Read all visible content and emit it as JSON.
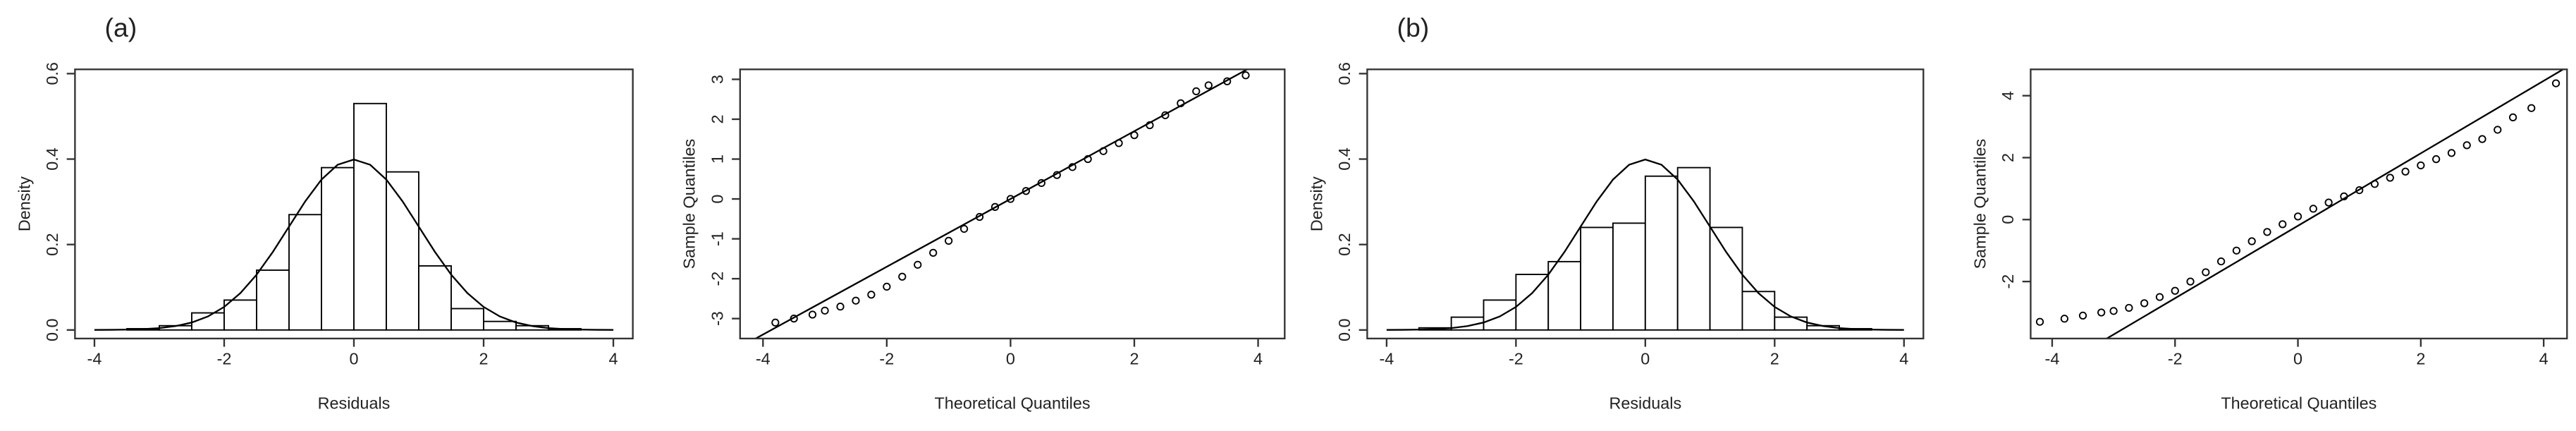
{
  "chart_data": [
    {
      "type": "histogram",
      "panel_label": "(a)",
      "xlabel": "Residuals",
      "ylabel": "Density",
      "bins": [
        -3.5,
        -3,
        -2.5,
        -2,
        -1.5,
        -1,
        -0.5,
        0,
        0.5,
        1,
        1.5,
        2,
        2.5,
        3,
        3.5
      ],
      "values": [
        0.003,
        0.01,
        0.04,
        0.07,
        0.14,
        0.27,
        0.38,
        0.53,
        0.37,
        0.15,
        0.05,
        0.02,
        0.01,
        0.003
      ],
      "density": {
        "x": [
          -4,
          -3.75,
          -3.5,
          -3.25,
          -3,
          -2.75,
          -2.5,
          -2.25,
          -2,
          -1.75,
          -1.5,
          -1.25,
          -1,
          -0.75,
          -0.5,
          -0.25,
          0,
          0.25,
          0.5,
          0.75,
          1,
          1.25,
          1.5,
          1.75,
          2,
          2.25,
          2.5,
          2.75,
          3,
          3.25,
          3.5,
          3.75,
          4
        ],
        "values": [
          0.0001,
          0.0004,
          0.0009,
          0.002,
          0.0044,
          0.0091,
          0.0175,
          0.0317,
          0.054,
          0.0863,
          0.1295,
          0.1826,
          0.242,
          0.3011,
          0.352,
          0.3867,
          0.399,
          0.3867,
          0.352,
          0.3011,
          0.242,
          0.1826,
          0.1295,
          0.0863,
          0.054,
          0.0317,
          0.0175,
          0.0091,
          0.0044,
          0.002,
          0.0009,
          0.0004,
          0.0001
        ]
      },
      "color": "#000000",
      "bar_fill": "#ffffff",
      "xlim": [
        -4.3,
        4.3
      ],
      "ylim": [
        -0.02,
        0.61
      ],
      "xticks": [
        -4,
        -2,
        0,
        2,
        4
      ],
      "yticks": [
        {
          "value": 0,
          "label": "0.0"
        },
        0.2,
        0.4,
        0.6
      ]
    },
    {
      "type": "qq",
      "xlabel": "Theoretical Quantiles",
      "ylabel": "Sample Quantiles",
      "x": [
        -3.8,
        -3.5,
        -3.2,
        -3,
        -2.75,
        -2.5,
        -2.25,
        -2,
        -1.75,
        -1.5,
        -1.25,
        -1,
        -0.75,
        -0.5,
        -0.25,
        0,
        0.25,
        0.5,
        0.75,
        1,
        1.25,
        1.5,
        1.75,
        2,
        2.25,
        2.5,
        2.75,
        3,
        3.2,
        3.5,
        3.8
      ],
      "values": [
        -3.1,
        -3,
        -2.9,
        -2.8,
        -2.7,
        -2.55,
        -2.4,
        -2.2,
        -1.95,
        -1.65,
        -1.35,
        -1.05,
        -0.75,
        -0.45,
        -0.2,
        0,
        0.2,
        0.4,
        0.6,
        0.8,
        1,
        1.2,
        1.4,
        1.6,
        1.85,
        2.1,
        2.4,
        2.7,
        2.85,
        2.95,
        3.1
      ],
      "qqline": {
        "intercept": 0,
        "slope": 0.85
      },
      "color": "#000000",
      "xlim": [
        -4.37,
        4.43
      ],
      "ylim": [
        -3.5,
        3.25
      ],
      "xticks": [
        -4,
        -2,
        0,
        2,
        4
      ],
      "yticks": [
        -3,
        -2,
        -1,
        0,
        1,
        2,
        3
      ]
    },
    {
      "type": "histogram",
      "panel_label": "(b)",
      "xlabel": "Residuals",
      "ylabel": "Density",
      "bins": [
        -3.5,
        -3,
        -2.5,
        -2,
        -1.5,
        -1,
        -0.5,
        0,
        0.5,
        1,
        1.5,
        2,
        2.5,
        3,
        3.5
      ],
      "values": [
        0.005,
        0.03,
        0.07,
        0.13,
        0.16,
        0.24,
        0.25,
        0.36,
        0.38,
        0.24,
        0.09,
        0.03,
        0.01,
        0.003
      ],
      "density": {
        "x": [
          -4,
          -3.75,
          -3.5,
          -3.25,
          -3,
          -2.75,
          -2.5,
          -2.25,
          -2,
          -1.75,
          -1.5,
          -1.25,
          -1,
          -0.75,
          -0.5,
          -0.25,
          0,
          0.25,
          0.5,
          0.75,
          1,
          1.25,
          1.5,
          1.75,
          2,
          2.25,
          2.5,
          2.75,
          3,
          3.25,
          3.5,
          3.75,
          4
        ],
        "values": [
          0.0001,
          0.0004,
          0.0009,
          0.002,
          0.0044,
          0.0091,
          0.0175,
          0.0317,
          0.054,
          0.0863,
          0.1295,
          0.1826,
          0.242,
          0.3011,
          0.352,
          0.3867,
          0.399,
          0.3867,
          0.352,
          0.3011,
          0.242,
          0.1826,
          0.1295,
          0.0863,
          0.054,
          0.0317,
          0.0175,
          0.0091,
          0.0044,
          0.002,
          0.0009,
          0.0004,
          0.0001
        ]
      },
      "color": "#000000",
      "bar_fill": "#ffffff",
      "xlim": [
        -4.3,
        4.3
      ],
      "ylim": [
        -0.02,
        0.61
      ],
      "xticks": [
        -4,
        -2,
        0,
        2,
        4
      ],
      "yticks": [
        {
          "value": 0,
          "label": "0.0"
        },
        0.2,
        0.4,
        0.6
      ]
    },
    {
      "type": "qq",
      "xlabel": "Theoretical Quantiles",
      "ylabel": "Sample Quantiles",
      "x": [
        -4.2,
        -3.8,
        -3.5,
        -3.2,
        -3,
        -2.75,
        -2.5,
        -2.25,
        -2,
        -1.75,
        -1.5,
        -1.25,
        -1,
        -0.75,
        -0.5,
        -0.25,
        0,
        0.25,
        0.5,
        0.75,
        1,
        1.25,
        1.5,
        1.75,
        2,
        2.25,
        2.5,
        2.75,
        3,
        3.25,
        3.5,
        3.8,
        4.2
      ],
      "values": [
        -3.3,
        -3.2,
        -3.1,
        -3,
        -2.95,
        -2.85,
        -2.7,
        -2.5,
        -2.3,
        -2,
        -1.7,
        -1.35,
        -1,
        -0.7,
        -0.4,
        -0.15,
        0.1,
        0.35,
        0.55,
        0.75,
        0.95,
        1.15,
        1.35,
        1.55,
        1.75,
        1.95,
        2.15,
        2.4,
        2.6,
        2.9,
        3.3,
        3.6,
        4.4
      ],
      "qqline": {
        "intercept": -0.2,
        "slope": 1.17
      },
      "color": "#000000",
      "xlim": [
        -4.35,
        4.38
      ],
      "ylim": [
        -3.84,
        4.85
      ],
      "xticks": [
        -4,
        -2,
        0,
        2,
        4
      ],
      "yticks": [
        -2,
        0,
        2,
        4
      ]
    }
  ]
}
